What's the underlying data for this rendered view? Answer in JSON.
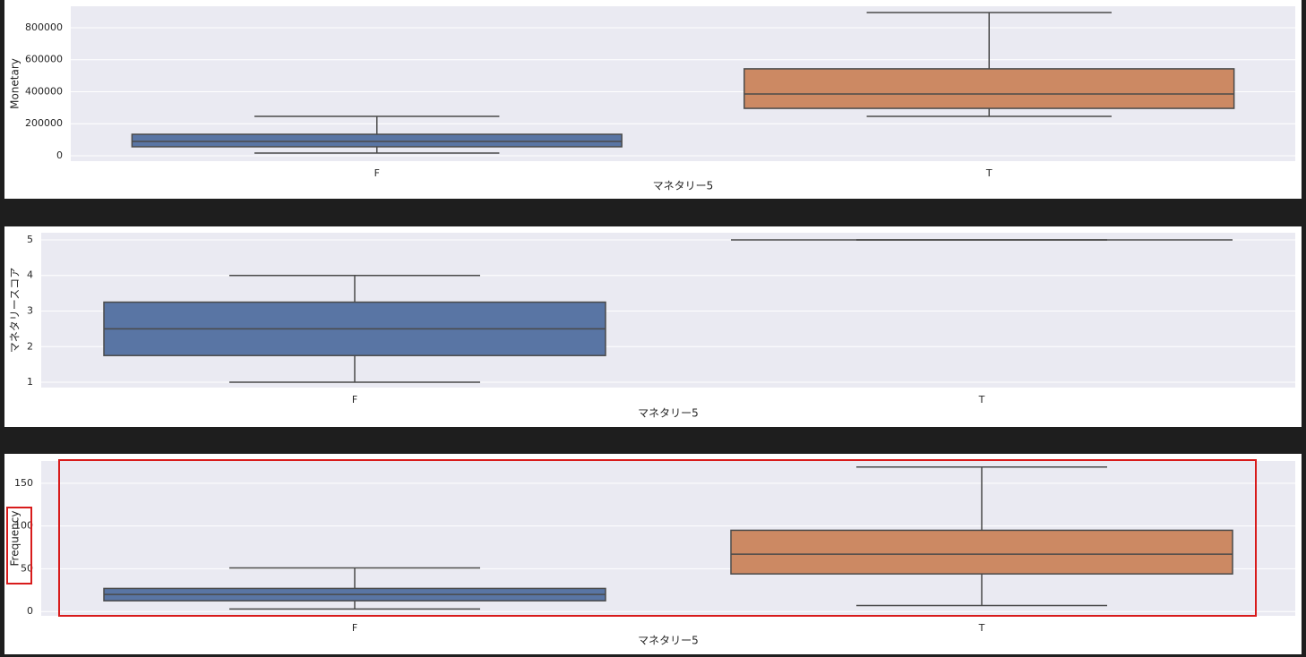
{
  "chart_data": [
    {
      "type": "box",
      "xlabel": "マネタリー5",
      "ylabel": "Monetary",
      "categories": [
        "F",
        "T"
      ],
      "boxes": [
        {
          "whislo": 16800,
          "q1": 56000,
          "med": 89500,
          "q3": 134000,
          "whishi": 246000,
          "color": "#5975a4"
        },
        {
          "whislo": 246000,
          "q1": 296000,
          "med": 386000,
          "q3": 543000,
          "whishi": 895000,
          "color": "#cc8963"
        }
      ],
      "ylim": [
        -33600,
        934000
      ],
      "yticks": [
        0,
        200000,
        400000,
        600000,
        800000
      ],
      "grid": true
    },
    {
      "type": "box",
      "xlabel": "マネタリー5",
      "ylabel": "マネタリースコア",
      "categories": [
        "F",
        "T"
      ],
      "boxes": [
        {
          "whislo": 1,
          "q1": 1.75,
          "med": 2.5,
          "q3": 3.25,
          "whishi": 4,
          "color": "#5975a4"
        },
        {
          "whislo": 5,
          "q1": 5,
          "med": 5,
          "q3": 5,
          "whishi": 5,
          "color": "#cc8963"
        }
      ],
      "ylim": [
        0.85,
        5.2
      ],
      "yticks": [
        1,
        2,
        3,
        4,
        5
      ],
      "grid": true
    },
    {
      "type": "box",
      "xlabel": "マネタリー5",
      "ylabel": "Frequency",
      "categories": [
        "F",
        "T"
      ],
      "boxes": [
        {
          "whislo": 3,
          "q1": 12.6,
          "med": 20,
          "q3": 27,
          "whishi": 51,
          "color": "#5975a4"
        },
        {
          "whislo": 7,
          "q1": 44,
          "med": 67,
          "q3": 95,
          "whishi": 169,
          "color": "#cc8963"
        }
      ],
      "ylim": [
        -5,
        176
      ],
      "yticks": [
        0,
        50,
        100,
        150
      ],
      "grid": true
    }
  ]
}
